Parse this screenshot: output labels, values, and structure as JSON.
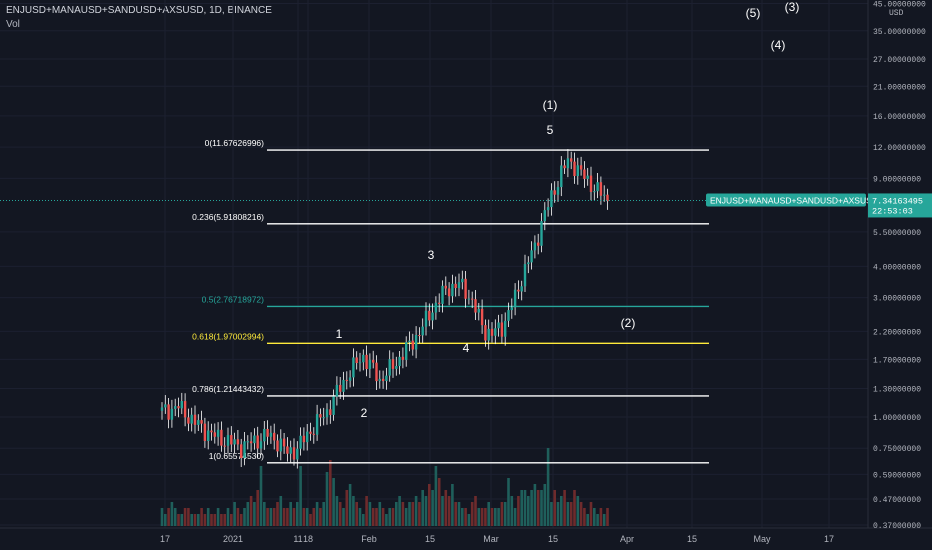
{
  "header": {
    "title": "ENJUSD+MANAUSD+SANDUSD+AXSUSD, 1D, BINANCE",
    "indicator": "Vol"
  },
  "price_badge": {
    "symbol": "ENJUSD+MANAUSD+SANDUSD+AXSUSD",
    "price": "7.34163495",
    "countdown": "22:53:03"
  },
  "axis": {
    "currency": "USD",
    "y_ticks": [
      "45.00000000",
      "35.00000000",
      "27.00000000",
      "21.00000000",
      "16.00000000",
      "12.00000000",
      "9.00000000",
      "5.50000000",
      "4.00000000",
      "3.00000000",
      "2.20000000",
      "1.70000000",
      "1.30000000",
      "1.00000000",
      "0.75000000",
      "0.59000000",
      "0.47000000",
      "0.37000000"
    ],
    "y_values": [
      45,
      35,
      27,
      21,
      16,
      12,
      9,
      5.5,
      4,
      3,
      2.2,
      1.7,
      1.3,
      1.0,
      0.75,
      0.59,
      0.47,
      0.37
    ],
    "x_ticks": [
      "17",
      "2021",
      "11",
      "18",
      "Feb",
      "15",
      "Mar",
      "15",
      "Apr",
      "15",
      "May",
      "17"
    ]
  },
  "chart_data": {
    "type": "candlestick",
    "scale": "log",
    "ylim": [
      0.35,
      48
    ],
    "last_price": 7.34163495,
    "fib_levels": [
      {
        "label": "0(11.67626996)",
        "value": 11.67626996,
        "color": "#ffffff"
      },
      {
        "label": "0.236(5.91808216)",
        "value": 5.91808216,
        "color": "#ffffff"
      },
      {
        "label": "0.5(2.76718972)",
        "value": 2.76718972,
        "color": "#26a69a"
      },
      {
        "label": "0.618(1.97002994)",
        "value": 1.97002994,
        "color": "#ffeb3b"
      },
      {
        "label": "0.786(1.21443432)",
        "value": 1.21443432,
        "color": "#ffffff"
      },
      {
        "label": "1(0.65574530)",
        "value": 0.6557453,
        "color": "#ffffff"
      }
    ],
    "wave_labels": [
      "(1)",
      "5",
      "3",
      "1",
      "4",
      "2",
      "(2)",
      "(3)",
      "(4)",
      "(5)"
    ],
    "close_path": [
      [
        0,
        1.05
      ],
      [
        5,
        1.1
      ],
      [
        10,
        0.95
      ],
      [
        15,
        0.85
      ],
      [
        20,
        0.8
      ],
      [
        24,
        0.76
      ],
      [
        28,
        0.8
      ],
      [
        32,
        0.85
      ],
      [
        35,
        0.8
      ],
      [
        38,
        0.72
      ],
      [
        41,
        0.75
      ],
      [
        44,
        0.85
      ],
      [
        47,
        0.95
      ],
      [
        50,
        1.05
      ],
      [
        53,
        1.25
      ],
      [
        56,
        1.45
      ],
      [
        59,
        1.65
      ],
      [
        61,
        1.75
      ],
      [
        64,
        1.55
      ],
      [
        66,
        1.4
      ],
      [
        68,
        1.5
      ],
      [
        71,
        1.65
      ],
      [
        73,
        1.8
      ],
      [
        76,
        2.0
      ],
      [
        79,
        2.3
      ],
      [
        82,
        2.7
      ],
      [
        85,
        3.1
      ],
      [
        87,
        3.3
      ],
      [
        90,
        3.4
      ],
      [
        92,
        3.2
      ],
      [
        94,
        2.9
      ],
      [
        96,
        2.5
      ],
      [
        98,
        2.2
      ],
      [
        100,
        2.15
      ],
      [
        103,
        2.3
      ],
      [
        105,
        2.6
      ],
      [
        107,
        3.0
      ],
      [
        109,
        3.6
      ],
      [
        111,
        4.2
      ],
      [
        113,
        4.8
      ],
      [
        115,
        6.0
      ],
      [
        117,
        7.0
      ],
      [
        119,
        8.2
      ],
      [
        121,
        9.5
      ],
      [
        123,
        10.5
      ],
      [
        125,
        10.2
      ],
      [
        127,
        9.4
      ],
      [
        129,
        8.8
      ],
      [
        131,
        8.3
      ],
      [
        133,
        7.8
      ],
      [
        135,
        7.34
      ]
    ],
    "volumes": [
      3,
      2,
      3,
      4,
      3,
      2,
      2,
      3,
      3,
      2,
      2,
      2,
      3,
      2,
      3,
      2,
      2,
      3,
      2,
      2,
      3,
      2,
      4,
      3,
      2,
      3,
      4,
      5,
      4,
      6,
      10,
      4,
      3,
      3,
      3,
      4,
      5,
      3,
      3,
      4,
      3,
      4,
      10,
      3,
      3,
      2,
      3,
      4,
      3,
      4,
      9,
      11,
      8,
      5,
      4,
      3,
      6,
      7,
      5,
      4,
      3,
      2,
      5,
      4,
      3,
      3,
      4,
      3,
      2,
      3,
      3,
      4,
      5,
      4,
      3,
      4,
      4,
      5,
      4,
      6,
      5,
      7,
      6,
      10,
      8,
      5,
      6,
      5,
      7,
      4,
      4,
      3,
      3,
      2,
      4,
      5,
      3,
      3,
      3,
      4,
      3,
      3,
      3,
      4,
      4,
      8,
      5,
      3,
      5,
      6,
      6,
      5,
      6,
      7,
      6,
      6,
      7,
      13,
      4,
      6,
      4,
      5,
      6,
      4,
      4,
      6,
      5,
      4,
      3,
      2,
      4,
      3,
      2,
      3,
      2,
      3
    ]
  }
}
